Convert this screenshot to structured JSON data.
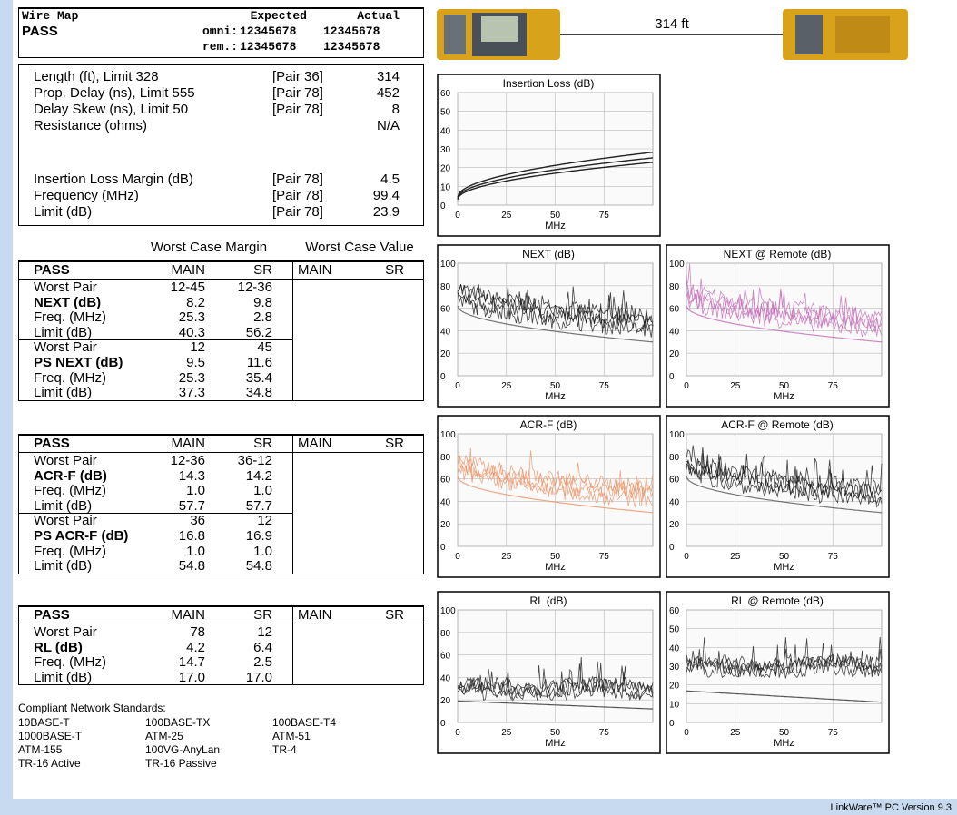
{
  "wire_map": {
    "title": "Wire Map",
    "result": "PASS",
    "col_expected": "Expected",
    "col_actual": "Actual",
    "rows": [
      {
        "label": "omni:",
        "expected": "12345678",
        "actual": "12345678"
      },
      {
        "label": "rem.:",
        "expected": "12345678",
        "actual": "12345678"
      }
    ]
  },
  "cable": {
    "length": "314 ft"
  },
  "summary": {
    "rows": [
      {
        "label": "Length (ft), Limit 328",
        "pair": "[Pair 36]",
        "value": "314"
      },
      {
        "label": "Prop. Delay (ns), Limit 555",
        "pair": "[Pair 78]",
        "value": "452"
      },
      {
        "label": "Delay Skew (ns), Limit 50",
        "pair": "[Pair 78]",
        "value": "8"
      },
      {
        "label": "Resistance (ohms)",
        "value": "N/A"
      },
      {
        "label": "Insertion Loss Margin (dB)",
        "pair": "[Pair 78]",
        "value": "4.5"
      },
      {
        "label": "Frequency (MHz)",
        "pair": "[Pair 78]",
        "value": "99.4"
      },
      {
        "label": "Limit (dB)",
        "pair": "[Pair 78]",
        "value": "23.9"
      }
    ]
  },
  "margin_header": {
    "margin": "Worst Case Margin",
    "value": "Worst Case Value"
  },
  "tables": [
    {
      "header": [
        "PASS",
        "MAIN",
        "SR",
        "MAIN",
        "SR"
      ],
      "rows": [
        [
          "Worst Pair",
          "12-45",
          "12-36"
        ],
        [
          "NEXT (dB)",
          "8.2",
          "9.8"
        ],
        [
          "Freq. (MHz)",
          "25.3",
          "2.8"
        ],
        [
          "Limit (dB)",
          "40.3",
          "56.2"
        ],
        [
          "Worst Pair",
          "12",
          "45"
        ],
        [
          "PS NEXT (dB)",
          "9.5",
          "11.6"
        ],
        [
          "Freq. (MHz)",
          "25.3",
          "35.4"
        ],
        [
          "Limit (dB)",
          "37.3",
          "34.8"
        ]
      ]
    },
    {
      "header": [
        "PASS",
        "MAIN",
        "SR",
        "MAIN",
        "SR"
      ],
      "rows": [
        [
          "Worst Pair",
          "12-36",
          "36-12"
        ],
        [
          "ACR-F (dB)",
          "14.3",
          "14.2"
        ],
        [
          "Freq. (MHz)",
          "1.0",
          "1.0"
        ],
        [
          "Limit (dB)",
          "57.7",
          "57.7"
        ],
        [
          "Worst Pair",
          "36",
          "12"
        ],
        [
          "PS ACR-F (dB)",
          "16.8",
          "16.9"
        ],
        [
          "Freq. (MHz)",
          "1.0",
          "1.0"
        ],
        [
          "Limit (dB)",
          "54.8",
          "54.8"
        ]
      ]
    },
    {
      "header": [
        "PASS",
        "MAIN",
        "SR",
        "MAIN",
        "SR"
      ],
      "rows": [
        [
          "Worst Pair",
          "78",
          "12"
        ],
        [
          "RL (dB)",
          "4.2",
          "6.4"
        ],
        [
          "Freq. (MHz)",
          "14.7",
          "2.5"
        ],
        [
          "Limit (dB)",
          "17.0",
          "17.0"
        ]
      ]
    }
  ],
  "standards": {
    "title": "Compliant Network Standards:",
    "items": [
      "10BASE-T",
      "100BASE-TX",
      "100BASE-T4",
      "1000BASE-T",
      "ATM-25",
      "ATM-51",
      "ATM-155",
      "100VG-AnyLan",
      "TR-4",
      "TR-16 Active",
      "TR-16 Passive"
    ]
  },
  "graphs": [
    {
      "title": "Insertion Loss (dB)",
      "xlabel": "MHz",
      "xlim": [
        0,
        100
      ],
      "xticks": [
        0,
        25,
        50,
        75
      ],
      "ylim": [
        0,
        60
      ],
      "yticks": [
        0,
        10,
        20,
        30,
        40,
        50,
        60
      ],
      "color": "#222222"
    },
    {
      "title": "NEXT (dB)",
      "xlabel": "MHz",
      "xlim": [
        0,
        100
      ],
      "xticks": [
        0,
        25,
        50,
        75
      ],
      "ylim": [
        0,
        100
      ],
      "yticks": [
        0,
        20,
        40,
        60,
        80,
        100
      ],
      "color": "#111111"
    },
    {
      "title": "NEXT @ Remote (dB)",
      "xlabel": "MHz",
      "xlim": [
        0,
        100
      ],
      "xticks": [
        0,
        25,
        50,
        75
      ],
      "ylim": [
        0,
        100
      ],
      "yticks": [
        0,
        20,
        40,
        60,
        80,
        100
      ],
      "color": "#c46ab8"
    },
    {
      "title": "ACR-F (dB)",
      "xlabel": "MHz",
      "xlim": [
        0,
        100
      ],
      "xticks": [
        0,
        25,
        50,
        75
      ],
      "ylim": [
        0,
        100
      ],
      "yticks": [
        0,
        20,
        40,
        60,
        80,
        100
      ],
      "color": "#eb9467"
    },
    {
      "title": "ACR-F @ Remote (dB)",
      "xlabel": "MHz",
      "xlim": [
        0,
        100
      ],
      "xticks": [
        0,
        25,
        50,
        75
      ],
      "ylim": [
        0,
        100
      ],
      "yticks": [
        0,
        20,
        40,
        60,
        80,
        100
      ],
      "color": "#111111"
    },
    {
      "title": "RL (dB)",
      "xlabel": "MHz",
      "xlim": [
        0,
        100
      ],
      "xticks": [
        0,
        25,
        50,
        75
      ],
      "ylim": [
        0,
        100
      ],
      "yticks": [
        0,
        20,
        40,
        60,
        80,
        100
      ],
      "color": "#222222"
    },
    {
      "title": "RL @ Remote (dB)",
      "xlabel": "MHz",
      "xlim": [
        0,
        100
      ],
      "xticks": [
        0,
        25,
        50,
        75
      ],
      "ylim": [
        0,
        60
      ],
      "yticks": [
        0,
        10,
        20,
        30,
        40,
        50,
        60
      ],
      "color": "#222222"
    }
  ],
  "footer": "LinkWare™ PC Version 9.3"
}
